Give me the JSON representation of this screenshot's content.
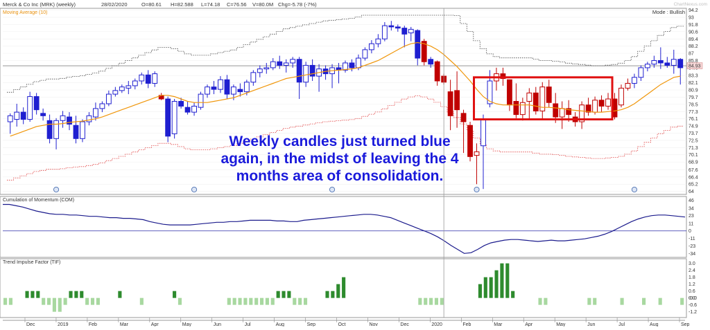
{
  "header": {
    "title": "Merck & Co Inc (MRK) (weekly)",
    "date": "28/02/2020",
    "open": "O=80.61",
    "high": "H=82.588",
    "low": "L=74.18",
    "close": "C=76.56",
    "volume": "V=80.0M",
    "change": "Chg=-5.78 (-7%)",
    "mode": "Mode : Bullish",
    "watermark": "ChartNexus.com",
    "ma_label": "Moving Average (10)",
    "last_price": "84.93"
  },
  "annotation": {
    "line1": "Weekly candles just turned blue",
    "line2": "again, in the midst of leaving the 4",
    "line3": "months area of consolidation."
  },
  "chart_data": [
    {
      "type": "candlestick",
      "title": "Merck & Co Inc (MRK) (weekly)",
      "ylim": [
        63.5,
        94.5
      ],
      "y_ticks": [
        "94.2",
        "93",
        "91.8",
        "90.6",
        "89.4",
        "88.2",
        "87",
        "85.8",
        "84.6",
        "83.3",
        "82.1",
        "80.9",
        "79.7",
        "78.5",
        "77.3",
        "76.1",
        "74.9",
        "73.7",
        "72.5",
        "71.3",
        "70.1",
        "68.9",
        "67.6",
        "66.4",
        "65.2",
        "64"
      ],
      "x_labels": [
        "Dec",
        "2019",
        "Feb",
        "Mar",
        "Apr",
        "May",
        "Jun",
        "Jul",
        "Aug",
        "Sep",
        "Oct",
        "Nov",
        "Dec",
        "2020",
        "Feb",
        "Mar",
        "Apr",
        "May",
        "Jun",
        "Jul",
        "Aug",
        "Sep"
      ],
      "candles": [
        {
          "o": 75.6,
          "h": 77.0,
          "l": 73.6,
          "c": 76.6,
          "color": "blue"
        },
        {
          "o": 76.0,
          "h": 78.6,
          "l": 74.8,
          "c": 77.2,
          "color": "blue"
        },
        {
          "o": 77.2,
          "h": 78.0,
          "l": 75.2,
          "c": 76.0,
          "color": "blue"
        },
        {
          "o": 76.0,
          "h": 80.6,
          "l": 75.6,
          "c": 79.8,
          "color": "blue"
        },
        {
          "o": 79.8,
          "h": 80.4,
          "l": 76.8,
          "c": 77.6,
          "color": "blue"
        },
        {
          "o": 77.0,
          "h": 77.8,
          "l": 75.8,
          "c": 76.6,
          "color": "blue"
        },
        {
          "o": 75.8,
          "h": 76.8,
          "l": 72.0,
          "c": 72.8,
          "color": "blue"
        },
        {
          "o": 72.8,
          "h": 76.2,
          "l": 71.0,
          "c": 75.8,
          "color": "blue"
        },
        {
          "o": 75.8,
          "h": 77.4,
          "l": 74.6,
          "c": 76.6,
          "color": "blue"
        },
        {
          "o": 76.4,
          "h": 77.2,
          "l": 74.2,
          "c": 75.2,
          "color": "blue"
        },
        {
          "o": 75.0,
          "h": 76.6,
          "l": 72.0,
          "c": 72.8,
          "color": "blue"
        },
        {
          "o": 72.8,
          "h": 76.0,
          "l": 72.2,
          "c": 75.6,
          "color": "blue"
        },
        {
          "o": 75.6,
          "h": 77.2,
          "l": 75.0,
          "c": 76.6,
          "color": "blue"
        },
        {
          "o": 76.4,
          "h": 78.8,
          "l": 75.8,
          "c": 77.8,
          "color": "blue"
        },
        {
          "o": 77.8,
          "h": 79.0,
          "l": 77.2,
          "c": 78.6,
          "color": "blue"
        },
        {
          "o": 78.6,
          "h": 80.8,
          "l": 78.2,
          "c": 80.2,
          "color": "blue"
        },
        {
          "o": 80.2,
          "h": 81.4,
          "l": 79.8,
          "c": 80.8,
          "color": "blue"
        },
        {
          "o": 80.8,
          "h": 81.8,
          "l": 80.4,
          "c": 81.4,
          "color": "blue"
        },
        {
          "o": 81.2,
          "h": 82.4,
          "l": 80.2,
          "c": 81.6,
          "color": "blue"
        },
        {
          "o": 81.6,
          "h": 82.8,
          "l": 81.0,
          "c": 82.4,
          "color": "blue"
        },
        {
          "o": 82.4,
          "h": 83.8,
          "l": 81.8,
          "c": 83.4,
          "color": "blue"
        },
        {
          "o": 83.4,
          "h": 84.2,
          "l": 81.2,
          "c": 82.0,
          "color": "blue"
        },
        {
          "o": 82.0,
          "h": 84.0,
          "l": 81.4,
          "c": 83.6,
          "color": "blue"
        },
        {
          "o": 80.0,
          "h": 80.4,
          "l": 79.2,
          "c": 79.4,
          "color": "red"
        },
        {
          "o": 79.4,
          "h": 79.8,
          "l": 72.2,
          "c": 73.2,
          "color": "blue"
        },
        {
          "o": 73.6,
          "h": 79.4,
          "l": 72.8,
          "c": 79.0,
          "color": "blue"
        },
        {
          "o": 79.0,
          "h": 79.6,
          "l": 77.8,
          "c": 78.2,
          "color": "blue"
        },
        {
          "o": 78.0,
          "h": 79.0,
          "l": 76.8,
          "c": 77.2,
          "color": "blue"
        },
        {
          "o": 77.2,
          "h": 78.8,
          "l": 76.6,
          "c": 78.2,
          "color": "blue"
        },
        {
          "o": 78.0,
          "h": 80.6,
          "l": 77.6,
          "c": 80.2,
          "color": "blue"
        },
        {
          "o": 80.2,
          "h": 81.8,
          "l": 79.6,
          "c": 81.4,
          "color": "blue"
        },
        {
          "o": 81.4,
          "h": 82.4,
          "l": 80.2,
          "c": 81.0,
          "color": "blue"
        },
        {
          "o": 81.0,
          "h": 83.2,
          "l": 80.4,
          "c": 82.6,
          "color": "blue"
        },
        {
          "o": 82.6,
          "h": 83.4,
          "l": 79.4,
          "c": 80.2,
          "color": "blue"
        },
        {
          "o": 80.2,
          "h": 81.8,
          "l": 79.2,
          "c": 81.4,
          "color": "blue"
        },
        {
          "o": 81.0,
          "h": 82.0,
          "l": 79.8,
          "c": 80.6,
          "color": "blue"
        },
        {
          "o": 80.6,
          "h": 82.6,
          "l": 80.0,
          "c": 82.2,
          "color": "blue"
        },
        {
          "o": 82.2,
          "h": 84.2,
          "l": 81.6,
          "c": 83.8,
          "color": "blue"
        },
        {
          "o": 83.8,
          "h": 85.0,
          "l": 83.0,
          "c": 84.4,
          "color": "blue"
        },
        {
          "o": 84.4,
          "h": 85.4,
          "l": 83.6,
          "c": 84.6,
          "color": "blue"
        },
        {
          "o": 84.6,
          "h": 86.2,
          "l": 84.2,
          "c": 85.6,
          "color": "blue"
        },
        {
          "o": 85.6,
          "h": 86.6,
          "l": 84.4,
          "c": 85.0,
          "color": "blue"
        },
        {
          "o": 85.0,
          "h": 86.0,
          "l": 83.8,
          "c": 85.4,
          "color": "blue"
        },
        {
          "o": 85.4,
          "h": 86.4,
          "l": 84.6,
          "c": 86.0,
          "color": "blue"
        },
        {
          "o": 86.0,
          "h": 86.4,
          "l": 79.4,
          "c": 82.2,
          "color": "blue"
        },
        {
          "o": 82.2,
          "h": 85.6,
          "l": 81.4,
          "c": 85.0,
          "color": "blue"
        },
        {
          "o": 85.0,
          "h": 86.0,
          "l": 82.4,
          "c": 83.2,
          "color": "blue"
        },
        {
          "o": 83.2,
          "h": 85.2,
          "l": 80.6,
          "c": 84.4,
          "color": "blue"
        },
        {
          "o": 84.4,
          "h": 85.0,
          "l": 82.6,
          "c": 83.6,
          "color": "blue"
        },
        {
          "o": 83.6,
          "h": 85.2,
          "l": 81.2,
          "c": 84.6,
          "color": "blue"
        },
        {
          "o": 84.6,
          "h": 85.4,
          "l": 82.0,
          "c": 84.2,
          "color": "blue"
        },
        {
          "o": 84.2,
          "h": 85.8,
          "l": 83.8,
          "c": 85.4,
          "color": "blue"
        },
        {
          "o": 85.4,
          "h": 86.0,
          "l": 84.0,
          "c": 84.6,
          "color": "blue"
        },
        {
          "o": 84.6,
          "h": 86.8,
          "l": 84.2,
          "c": 86.2,
          "color": "blue"
        },
        {
          "o": 86.2,
          "h": 88.0,
          "l": 85.8,
          "c": 87.6,
          "color": "blue"
        },
        {
          "o": 87.6,
          "h": 89.2,
          "l": 87.0,
          "c": 88.6,
          "color": "blue"
        },
        {
          "o": 88.6,
          "h": 90.2,
          "l": 88.0,
          "c": 89.4,
          "color": "blue"
        },
        {
          "o": 89.4,
          "h": 92.2,
          "l": 89.0,
          "c": 91.6,
          "color": "blue"
        },
        {
          "o": 91.6,
          "h": 92.4,
          "l": 90.8,
          "c": 91.4,
          "color": "blue"
        },
        {
          "o": 91.4,
          "h": 91.8,
          "l": 90.6,
          "c": 91.2,
          "color": "blue"
        },
        {
          "o": 91.2,
          "h": 91.6,
          "l": 88.0,
          "c": 90.2,
          "color": "blue"
        },
        {
          "o": 90.4,
          "h": 91.4,
          "l": 89.0,
          "c": 91.0,
          "color": "blue"
        },
        {
          "o": 90.8,
          "h": 91.0,
          "l": 85.0,
          "c": 86.2,
          "color": "blue"
        },
        {
          "o": 89.0,
          "h": 89.4,
          "l": 85.0,
          "c": 85.6,
          "color": "red"
        },
        {
          "o": 86.0,
          "h": 86.4,
          "l": 84.6,
          "c": 85.2,
          "color": "blue"
        },
        {
          "o": 85.6,
          "h": 85.8,
          "l": 81.6,
          "c": 82.4,
          "color": "red"
        },
        {
          "o": 83.2,
          "h": 83.6,
          "l": 81.8,
          "c": 82.2,
          "color": "red"
        },
        {
          "o": 80.6,
          "h": 82.6,
          "l": 74.2,
          "c": 76.6,
          "color": "red"
        },
        {
          "o": 80.8,
          "h": 84.0,
          "l": 74.6,
          "c": 77.6,
          "color": "red"
        },
        {
          "o": 77.0,
          "h": 77.6,
          "l": 70.4,
          "c": 75.6,
          "color": "red"
        },
        {
          "o": 75.0,
          "h": 75.6,
          "l": 69.0,
          "c": 69.8,
          "color": "red"
        },
        {
          "o": 70.0,
          "h": 72.0,
          "l": 65.2,
          "c": 70.6,
          "color": "red"
        },
        {
          "o": 71.6,
          "h": 76.8,
          "l": 64.4,
          "c": 76.0,
          "color": "blue"
        },
        {
          "o": 78.6,
          "h": 84.2,
          "l": 78.0,
          "c": 82.4,
          "color": "blue"
        },
        {
          "o": 82.4,
          "h": 84.6,
          "l": 80.8,
          "c": 83.6,
          "color": "red"
        },
        {
          "o": 83.6,
          "h": 84.6,
          "l": 81.6,
          "c": 82.8,
          "color": "red"
        },
        {
          "o": 82.6,
          "h": 82.6,
          "l": 77.4,
          "c": 78.4,
          "color": "red"
        },
        {
          "o": 79.0,
          "h": 82.0,
          "l": 76.2,
          "c": 76.8,
          "color": "red"
        },
        {
          "o": 76.8,
          "h": 79.6,
          "l": 75.8,
          "c": 78.8,
          "color": "red"
        },
        {
          "o": 79.0,
          "h": 81.2,
          "l": 76.0,
          "c": 80.4,
          "color": "red"
        },
        {
          "o": 80.4,
          "h": 81.4,
          "l": 76.8,
          "c": 77.4,
          "color": "red"
        },
        {
          "o": 77.4,
          "h": 82.2,
          "l": 76.0,
          "c": 81.4,
          "color": "red"
        },
        {
          "o": 81.4,
          "h": 82.6,
          "l": 78.0,
          "c": 78.8,
          "color": "red"
        },
        {
          "o": 78.6,
          "h": 80.4,
          "l": 75.4,
          "c": 76.4,
          "color": "red"
        },
        {
          "o": 76.4,
          "h": 79.0,
          "l": 74.4,
          "c": 77.8,
          "color": "red"
        },
        {
          "o": 77.8,
          "h": 79.2,
          "l": 75.6,
          "c": 76.8,
          "color": "red"
        },
        {
          "o": 76.4,
          "h": 77.2,
          "l": 74.8,
          "c": 75.6,
          "color": "red"
        },
        {
          "o": 75.6,
          "h": 79.0,
          "l": 74.4,
          "c": 78.4,
          "color": "red"
        },
        {
          "o": 78.4,
          "h": 79.6,
          "l": 76.6,
          "c": 77.2,
          "color": "red"
        },
        {
          "o": 77.2,
          "h": 79.8,
          "l": 76.8,
          "c": 79.2,
          "color": "red"
        },
        {
          "o": 79.2,
          "h": 80.0,
          "l": 77.2,
          "c": 78.2,
          "color": "red"
        },
        {
          "o": 78.2,
          "h": 80.4,
          "l": 77.6,
          "c": 79.4,
          "color": "red"
        },
        {
          "o": 79.4,
          "h": 80.4,
          "l": 76.0,
          "c": 76.4,
          "color": "red"
        },
        {
          "o": 78.4,
          "h": 81.8,
          "l": 78.0,
          "c": 81.2,
          "color": "red"
        },
        {
          "o": 81.2,
          "h": 82.8,
          "l": 80.8,
          "c": 82.0,
          "color": "red"
        },
        {
          "o": 82.0,
          "h": 83.6,
          "l": 81.2,
          "c": 83.0,
          "color": "blue"
        },
        {
          "o": 83.0,
          "h": 85.0,
          "l": 82.4,
          "c": 84.6,
          "color": "blue"
        },
        {
          "o": 84.6,
          "h": 85.6,
          "l": 84.0,
          "c": 85.2,
          "color": "blue"
        },
        {
          "o": 85.2,
          "h": 86.6,
          "l": 84.6,
          "c": 85.8,
          "color": "blue"
        },
        {
          "o": 85.8,
          "h": 88.0,
          "l": 84.4,
          "c": 85.4,
          "color": "blue"
        },
        {
          "o": 85.4,
          "h": 86.4,
          "l": 84.6,
          "c": 85.0,
          "color": "blue"
        },
        {
          "o": 85.0,
          "h": 87.6,
          "l": 83.6,
          "c": 86.0,
          "color": "blue"
        },
        {
          "o": 86.0,
          "h": 86.2,
          "l": 81.8,
          "c": 84.6,
          "color": "blue"
        }
      ],
      "moving_average_10": [
        73.2,
        73.6,
        74.0,
        74.4,
        74.8,
        75.0,
        75.2,
        75.2,
        75.3,
        75.5,
        75.6,
        75.7,
        75.9,
        76.1,
        76.4,
        76.8,
        77.2,
        77.6,
        78.0,
        78.4,
        78.8,
        79.2,
        79.6,
        80.0,
        80.0,
        79.8,
        79.4,
        79.0,
        78.8,
        78.8,
        78.8,
        79.0,
        79.2,
        79.4,
        79.6,
        80.0,
        80.4,
        80.8,
        81.2,
        81.6,
        82.0,
        82.4,
        82.8,
        83.0,
        83.2,
        83.4,
        83.6,
        83.8,
        84.0,
        84.1,
        84.2,
        84.3,
        84.4,
        84.6,
        85.0,
        85.4,
        85.8,
        86.4,
        87.0,
        87.6,
        88.2,
        88.6,
        88.8,
        88.6,
        88.2,
        87.6,
        86.8,
        85.8,
        84.8,
        83.6,
        82.4,
        81.0,
        79.8,
        79.0,
        78.6,
        78.4,
        78.4,
        78.4,
        78.4,
        78.4,
        78.2,
        78.0,
        78.0,
        77.9,
        77.8,
        77.6,
        77.5,
        77.4,
        77.3,
        77.2,
        77.2,
        77.3,
        77.4,
        77.6,
        78.0,
        78.6,
        79.4,
        80.2,
        81.0,
        81.8,
        82.4,
        83.0,
        83.2
      ]
    },
    {
      "type": "line",
      "title": "Cumulation of Momentum (COM)",
      "ylim": [
        -40,
        52
      ],
      "y_ticks": [
        "46",
        "34",
        "23",
        "11",
        "0",
        "-11",
        "-23",
        "-34"
      ],
      "values": [
        40,
        40,
        38,
        36,
        33,
        30,
        28,
        26,
        25,
        25,
        24,
        24,
        23,
        22,
        22,
        21,
        20,
        20,
        19,
        19,
        18,
        17,
        14,
        12,
        10,
        9,
        9,
        9,
        9,
        10,
        11,
        12,
        13,
        13,
        14,
        14,
        15,
        16,
        16,
        16,
        16,
        15,
        15,
        14,
        14,
        16,
        17,
        18,
        19,
        20,
        21,
        22,
        23,
        24,
        25,
        25,
        24,
        22,
        20,
        16,
        12,
        8,
        4,
        0,
        -4,
        -9,
        -15,
        -22,
        -28,
        -34,
        -33,
        -28,
        -22,
        -18,
        -16,
        -14,
        -13,
        -13,
        -14,
        -15,
        -16,
        -15,
        -14,
        -15,
        -15,
        -14,
        -13,
        -12,
        -10,
        -8,
        -5,
        -1,
        4,
        9,
        14,
        18,
        21,
        23,
        24,
        24,
        23,
        22,
        21
      ]
    },
    {
      "type": "bar",
      "title": "Trend Impulse Factor (TIF)",
      "ylim": [
        -1.7,
        3.4
      ],
      "y_ticks": [
        "3.0",
        "2.4",
        "1.8",
        "1.2",
        "0.6",
        "0.0",
        "-0.0",
        "-0.6",
        "-1.2"
      ],
      "values": [
        -0.6,
        -0.6,
        0,
        0,
        0.6,
        0.6,
        0.6,
        -0.6,
        -0.6,
        -1.2,
        -1.2,
        -0.6,
        0.6,
        0.6,
        0.6,
        -0.6,
        -0.6,
        -0.6,
        0,
        0,
        0,
        0.6,
        0,
        0,
        0,
        -0.6,
        0,
        0,
        0,
        0,
        0,
        0.6,
        -0.6,
        0,
        0,
        0,
        0,
        0,
        0,
        0,
        0,
        -0.6,
        -0.6,
        -0.6,
        -0.6,
        -0.6,
        -0.6,
        -0.6,
        -0.6,
        -0.6,
        0.6,
        0.6,
        0.6,
        -0.6,
        -0.6,
        -0.6,
        0,
        0,
        0,
        0.6,
        0.6,
        1.2,
        1.8,
        0,
        0,
        0,
        0,
        0,
        0,
        0,
        0,
        0,
        0,
        0,
        0,
        0,
        -0.6,
        -0.6,
        -0.6,
        -0.6,
        -0.6,
        0,
        0,
        0,
        0,
        0,
        0,
        1.2,
        1.8,
        1.8,
        2.4,
        3.0,
        3.0,
        0.6,
        0,
        0,
        0,
        0,
        -0.6,
        -0.6,
        0,
        0,
        0,
        0,
        0,
        0,
        0,
        -0.6,
        -0.6,
        0,
        0,
        0,
        0,
        -0.6,
        0,
        0,
        0,
        -0.6,
        0,
        0,
        -0.6,
        0,
        0,
        0,
        -0.6
      ],
      "positive_color": "#2e8b2e",
      "negative_color": "#a8d8a0"
    }
  ]
}
